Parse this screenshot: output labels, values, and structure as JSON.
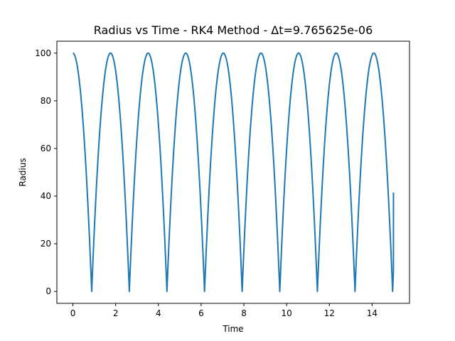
{
  "chart_data": {
    "type": "line",
    "title": "Radius vs Time - RK4 Method - Δt=9.765625e-06",
    "xlabel": "Time",
    "ylabel": "Radius",
    "xlim": [
      -0.75,
      15.75
    ],
    "ylim": [
      -5,
      105
    ],
    "xticks": [
      0,
      2,
      4,
      6,
      8,
      10,
      12,
      14
    ],
    "yticks": [
      0,
      20,
      40,
      60,
      80,
      100
    ],
    "grid": false,
    "series": [
      {
        "color": "#1f77b4",
        "model": "free-fall bounce, max radius 100, period 1.76",
        "r_max": 100,
        "period": 1.76,
        "first_collapse": 0.88,
        "x_end": 15.0,
        "y_end": 41.5
      }
    ]
  }
}
